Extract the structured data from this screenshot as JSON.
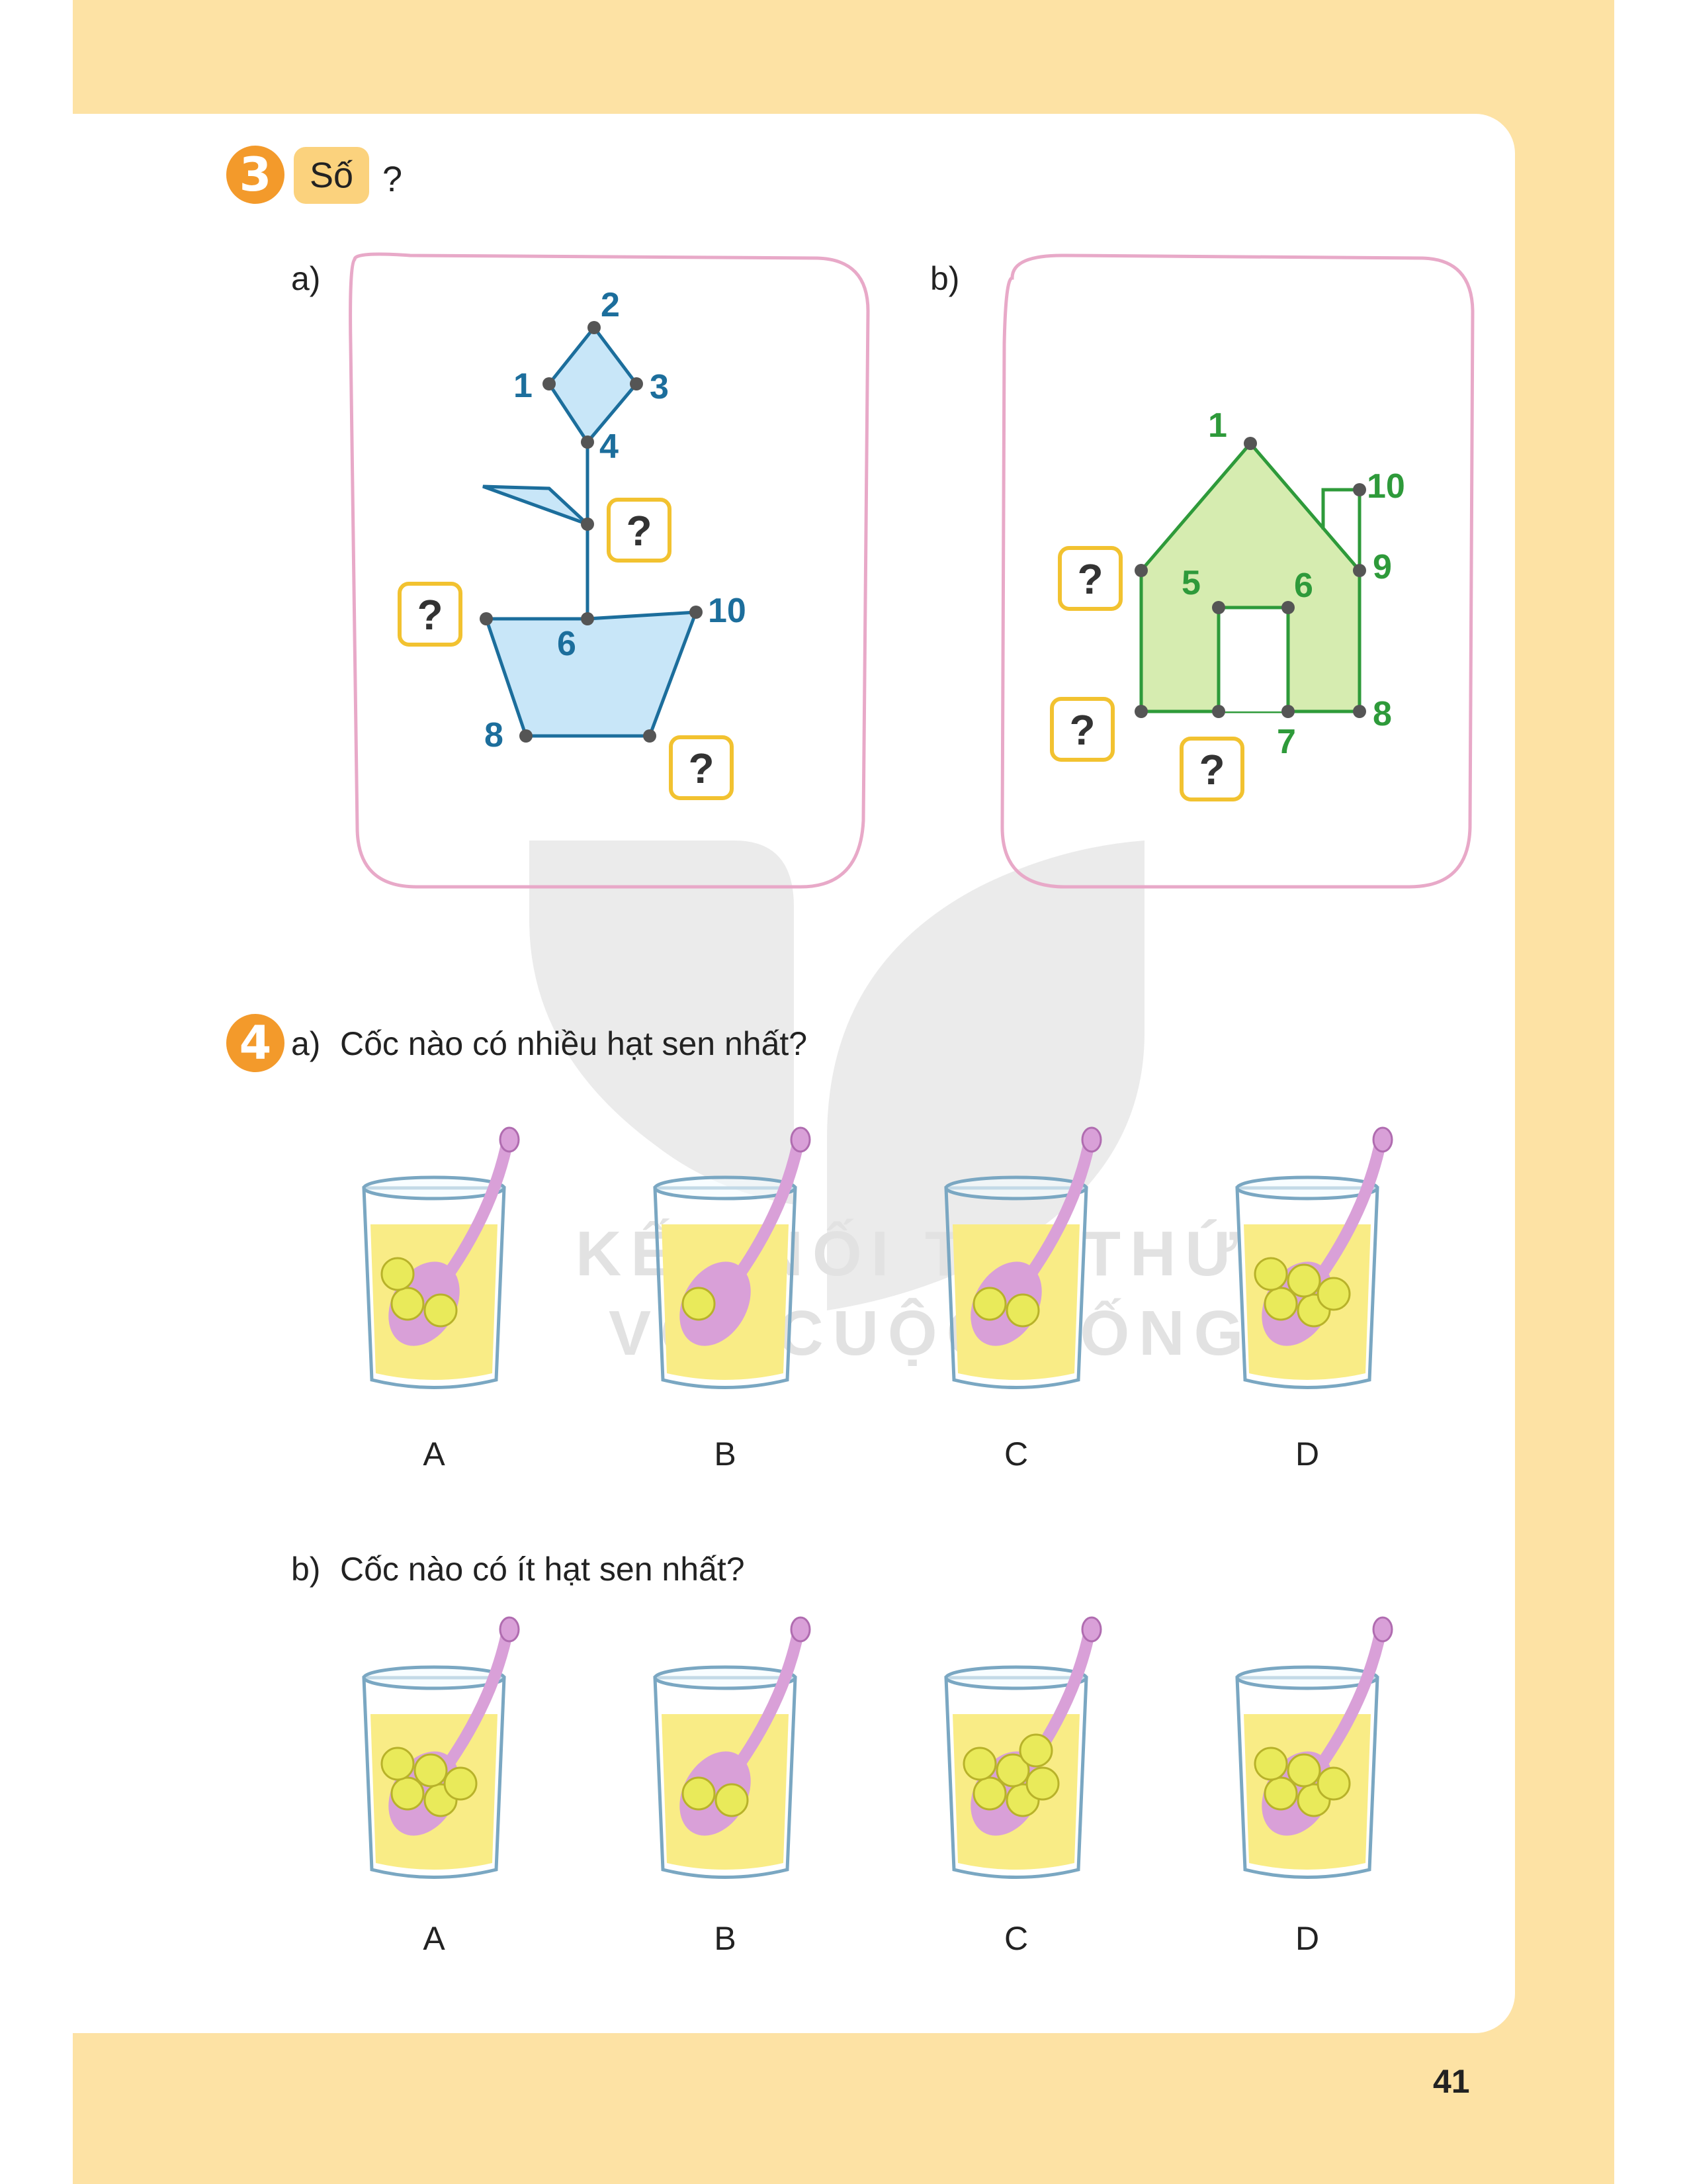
{
  "exercise3": {
    "number": "3",
    "title": "Số",
    "title_suffix": "?",
    "part_a": {
      "label": "a)",
      "labels": [
        "1",
        "2",
        "3",
        "4",
        "6",
        "8",
        "10"
      ],
      "unknown": "?"
    },
    "part_b": {
      "label": "b)",
      "labels": [
        "1",
        "5",
        "6",
        "7",
        "8",
        "9",
        "10"
      ],
      "unknown": "?"
    }
  },
  "exercise4": {
    "number": "4",
    "part_a": {
      "label": "a)",
      "question": "Cốc nào có nhiều hạt sen nhất?",
      "cups": [
        {
          "label": "A",
          "seeds": 3
        },
        {
          "label": "B",
          "seeds": 1
        },
        {
          "label": "C",
          "seeds": 2
        },
        {
          "label": "D",
          "seeds": 5
        }
      ]
    },
    "part_b": {
      "label": "b)",
      "question": "Cốc nào có ít hạt sen nhất?",
      "cups": [
        {
          "label": "A",
          "seeds": 5
        },
        {
          "label": "B",
          "seeds": 2
        },
        {
          "label": "C",
          "seeds": 6
        },
        {
          "label": "D",
          "seeds": 5
        }
      ]
    }
  },
  "watermark": {
    "line1": "KẾT NỐI TRI THỨC",
    "line2": "VỚI CUỘC SỐNG"
  },
  "page_number": "41",
  "colors": {
    "page_border": "#fde2a4",
    "badge": "#f39a2b",
    "title_tag": "#fbd27d",
    "flower_fill": "#c8e6f8",
    "flower_line": "#1c6e9c",
    "house_fill": "#d6ecb0",
    "house_line": "#2e9a3a",
    "frame": "#e8a9c8",
    "question_box": "#f2c230",
    "juice": "#f9ec86",
    "spoon": "#d9a0d8",
    "seed": "#e9ea5a"
  }
}
